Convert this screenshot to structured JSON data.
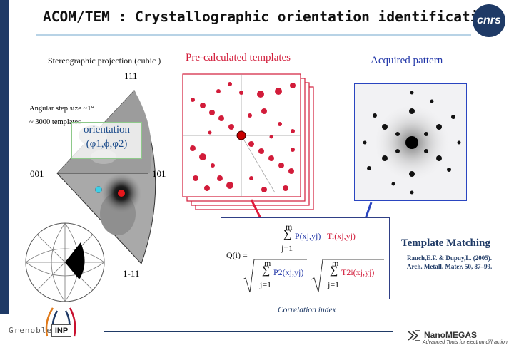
{
  "header": {
    "title": "ACOM/TEM : Crystallographic orientation identification",
    "logo_text": "cnrs"
  },
  "stereogram": {
    "caption": "Stereographic projection (cubic )",
    "pole_111": "111",
    "pole_001": "001",
    "pole_101": "101",
    "pole_1m11": "1-11",
    "step_size": "Angular step size ~1°",
    "num_templates": "~ 3000 templates",
    "orientation_label": "orientation",
    "orientation_angles": "(φ1,ϕ,φ2)"
  },
  "templates": {
    "title": "Pre-calculated templates"
  },
  "acquired": {
    "title": "Acquired pattern"
  },
  "formula": {
    "q_label": "Q(i) =",
    "sum_upper": "m",
    "sum_lower": "j=1",
    "sum_symbol": "∑",
    "num_p": "P(xj,yj)",
    "num_t": "Ti(xj,yj)",
    "den_p2": "P2(xj,yj)",
    "den_t2": "T2i(xj,yj)",
    "caption": "Correlation index"
  },
  "matching": {
    "title": "Template Matching",
    "ref_line1": "Rauch,E.F. & Dupuy,L. (2005).",
    "ref_line2": "Arch. Metall. Mater. 50, 87–99."
  },
  "footer": {
    "grenoble": "Grenoble",
    "inp": "INP",
    "company": "NanoMEGAS",
    "tagline": "Advanced Tools for electron diffraction"
  },
  "colors": {
    "navy": "#1f3a66",
    "template_red": "#d21c3a",
    "acquired_blue": "#2136a8",
    "highlight_green": "#8ec98a"
  }
}
